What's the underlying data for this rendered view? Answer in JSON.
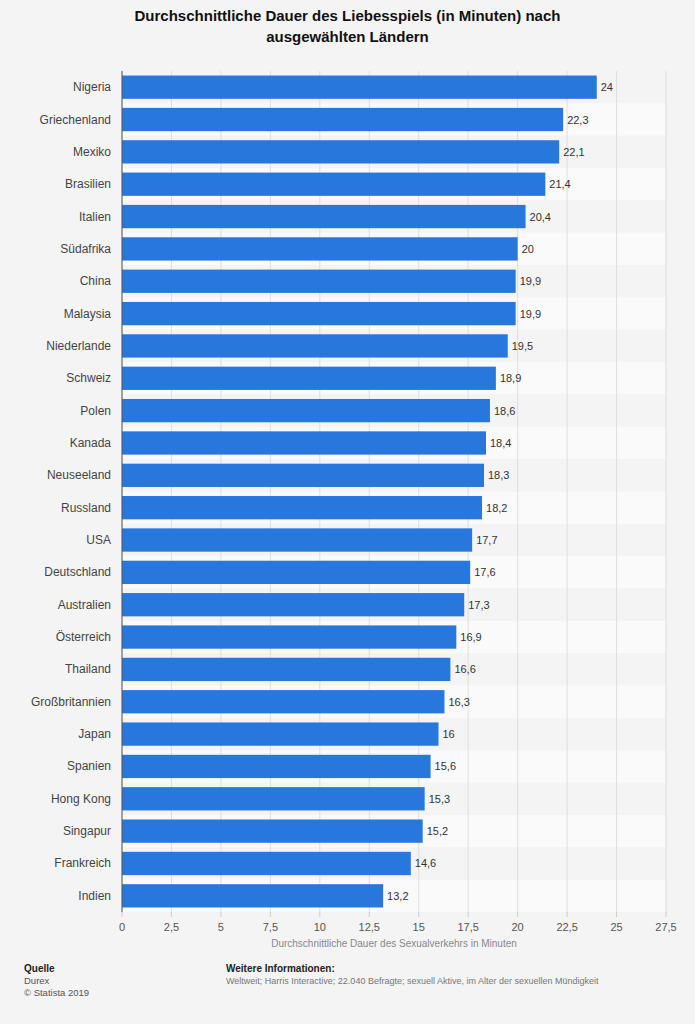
{
  "chart_data": {
    "type": "bar",
    "orientation": "horizontal",
    "title": "Durchschnittliche Dauer des Liebesspiels (in Minuten) nach ausgewählten Ländern",
    "xlabel": "Durchschnittliche Dauer des Sexualverkehrs in Minuten",
    "categories": [
      "Nigeria",
      "Griechenland",
      "Mexiko",
      "Brasilien",
      "Italien",
      "Südafrika",
      "China",
      "Malaysia",
      "Niederlande",
      "Schweiz",
      "Polen",
      "Kanada",
      "Neuseeland",
      "Russland",
      "USA",
      "Deutschland",
      "Australien",
      "Österreich",
      "Thailand",
      "Großbritannien",
      "Japan",
      "Spanien",
      "Hong Kong",
      "Singapur",
      "Frankreich",
      "Indien"
    ],
    "values": [
      24,
      22.3,
      22.1,
      21.4,
      20.4,
      20,
      19.9,
      19.9,
      19.5,
      18.9,
      18.6,
      18.4,
      18.3,
      18.2,
      17.7,
      17.6,
      17.3,
      16.9,
      16.6,
      16.3,
      16,
      15.6,
      15.3,
      15.2,
      14.6,
      13.2
    ],
    "value_labels": [
      "24",
      "22,3",
      "22,1",
      "21,4",
      "20,4",
      "20",
      "19,9",
      "19,9",
      "19,5",
      "18,9",
      "18,6",
      "18,4",
      "18,3",
      "18,2",
      "17,7",
      "17,6",
      "17,3",
      "16,9",
      "16,6",
      "16,3",
      "16",
      "15,6",
      "15,3",
      "15,2",
      "14,6",
      "13,2"
    ],
    "data_labels": true,
    "color": "#2777dd",
    "xlim": [
      0,
      27.5
    ],
    "xticks": [
      0,
      {
        "value": 2.5,
        "label": "2,5"
      },
      5,
      {
        "value": 7.5,
        "label": "7,5"
      },
      10,
      {
        "value": 12.5,
        "label": "12,5"
      },
      15,
      {
        "value": 17.5,
        "label": "17,5"
      },
      20,
      {
        "value": 22.5,
        "label": "22,5"
      },
      25,
      {
        "value": 27.5,
        "label": "27,5"
      }
    ],
    "grid": true,
    "source_label": "Quelle",
    "source": "Durex",
    "copyright": "© Statista 2019",
    "info_label": "Weitere Informationen:",
    "info": "Weltweit; Harris Interactive; 22.040 Befragte; sexuell Aktive, im Alter der sexuellen Mündigkeit"
  }
}
